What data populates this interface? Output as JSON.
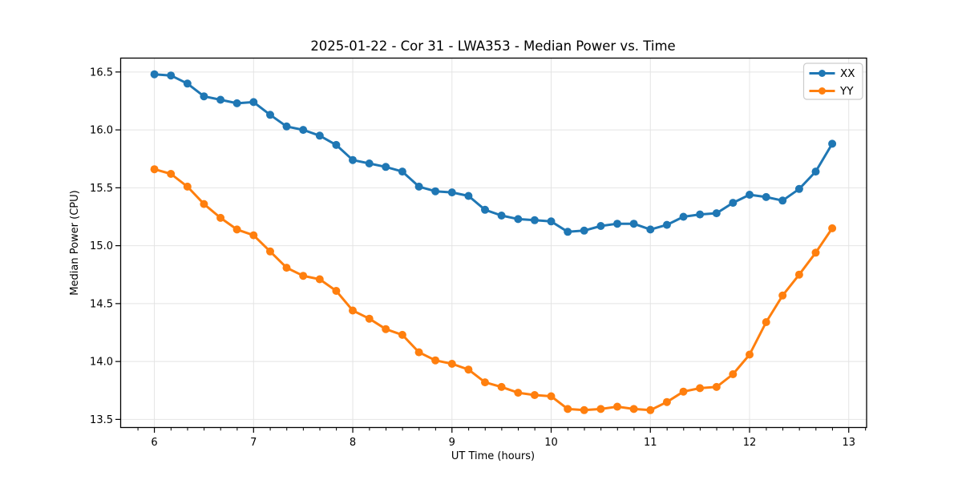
{
  "chart_data": {
    "type": "line",
    "title": "2025-01-22 - Cor 31 - LWA353 - Median Power vs. Time",
    "xlabel": "UT Time (hours)",
    "ylabel": "Median Power (CPU)",
    "xlim": [
      5.66,
      13.18
    ],
    "ylim": [
      13.43,
      16.62
    ],
    "x_ticks": [
      6,
      7,
      8,
      9,
      10,
      11,
      12,
      13
    ],
    "x_minor_step": 0.1667,
    "y_ticks": [
      13.5,
      14.0,
      14.5,
      15.0,
      15.5,
      16.0,
      16.5
    ],
    "grid": true,
    "legend_position": "upper right",
    "colors": {
      "axis": "#000000",
      "grid": "#e4e4e4",
      "legend_border": "#cccccc",
      "legend_bg": "#ffffff"
    },
    "x": [
      6.0,
      6.167,
      6.333,
      6.5,
      6.667,
      6.833,
      7.0,
      7.167,
      7.333,
      7.5,
      7.667,
      7.833,
      8.0,
      8.167,
      8.333,
      8.5,
      8.667,
      8.833,
      9.0,
      9.167,
      9.333,
      9.5,
      9.667,
      9.833,
      10.0,
      10.167,
      10.333,
      10.5,
      10.667,
      10.833,
      11.0,
      11.167,
      11.333,
      11.5,
      11.667,
      11.833,
      12.0,
      12.167,
      12.333,
      12.5,
      12.667,
      12.833
    ],
    "series": [
      {
        "name": "XX",
        "color": "#1f77b4",
        "marker": "circle",
        "values": [
          16.48,
          16.47,
          16.4,
          16.29,
          16.26,
          16.23,
          16.24,
          16.13,
          16.03,
          16.0,
          15.95,
          15.87,
          15.74,
          15.71,
          15.68,
          15.64,
          15.51,
          15.47,
          15.46,
          15.43,
          15.31,
          15.26,
          15.23,
          15.22,
          15.21,
          15.12,
          15.13,
          15.17,
          15.19,
          15.19,
          15.14,
          15.18,
          15.25,
          15.27,
          15.28,
          15.37,
          15.44,
          15.42,
          15.39,
          15.49,
          15.64,
          15.88
        ]
      },
      {
        "name": "YY",
        "color": "#ff7f0e",
        "marker": "circle",
        "values": [
          15.66,
          15.62,
          15.51,
          15.36,
          15.24,
          15.14,
          15.09,
          14.95,
          14.81,
          14.74,
          14.71,
          14.61,
          14.44,
          14.37,
          14.28,
          14.23,
          14.08,
          14.01,
          13.98,
          13.93,
          13.82,
          13.78,
          13.73,
          13.71,
          13.7,
          13.59,
          13.58,
          13.59,
          13.61,
          13.59,
          13.58,
          13.65,
          13.74,
          13.77,
          13.78,
          13.89,
          14.06,
          14.34,
          14.57,
          14.75,
          14.94,
          15.15
        ]
      }
    ]
  }
}
